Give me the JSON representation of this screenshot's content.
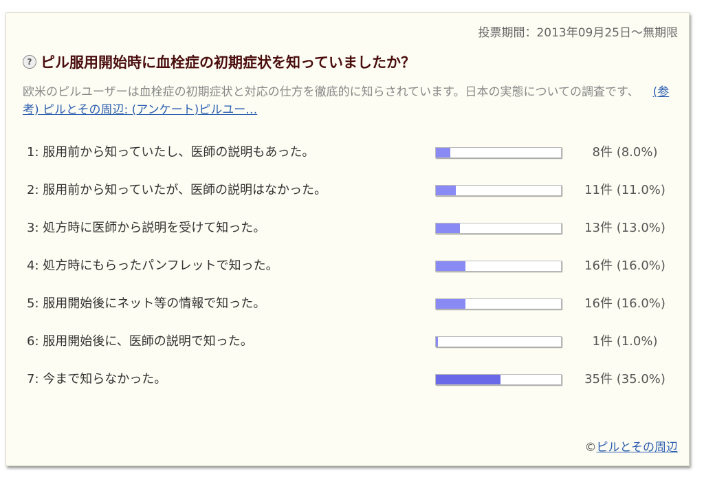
{
  "period": "投票期間：2013年09月25日～無期限",
  "title": "ピル服用開始時に血栓症の初期症状を知っていましたか？",
  "description": "欧米のピルユーザーは血栓症の初期症状と対応の仕方を徹底的に知らされています。日本の実態についての調査です、",
  "reference_link": "(参考) ピルとその周辺: (アンケート)ピルユー…",
  "items": [
    {
      "label": "1: 服用前から知っていたし、医師の説明もあった。",
      "count": "8件 (8.0%)",
      "percent": 8.0
    },
    {
      "label": "2: 服用前から知っていたが、医師の説明はなかった。",
      "count": "11件 (11.0%)",
      "percent": 11.0
    },
    {
      "label": "3: 処方時に医師から説明を受けて知った。",
      "count": "13件 (13.0%)",
      "percent": 13.0
    },
    {
      "label": "4: 処方時にもらったパンフレットで知った。",
      "count": "16件 (16.0%)",
      "percent": 16.0
    },
    {
      "label": "5: 服用開始後にネット等の情報で知った。",
      "count": "16件 (16.0%)",
      "percent": 16.0
    },
    {
      "label": "6: 服用開始後に、医師の説明で知った。",
      "count": "1件 (1.0%)",
      "percent": 1.0
    },
    {
      "label": "7: 今まで知らなかった。",
      "count": "35件 (35.0%)",
      "percent": 35.0
    }
  ],
  "copyright_symbol": "©",
  "copyright_link": "ピルとその周辺",
  "colors": {
    "bar_fill": "#8a8af5",
    "bar_fill_max": "#6a6ae8",
    "title": "#4a0d0d",
    "link": "#2a5db0"
  }
}
